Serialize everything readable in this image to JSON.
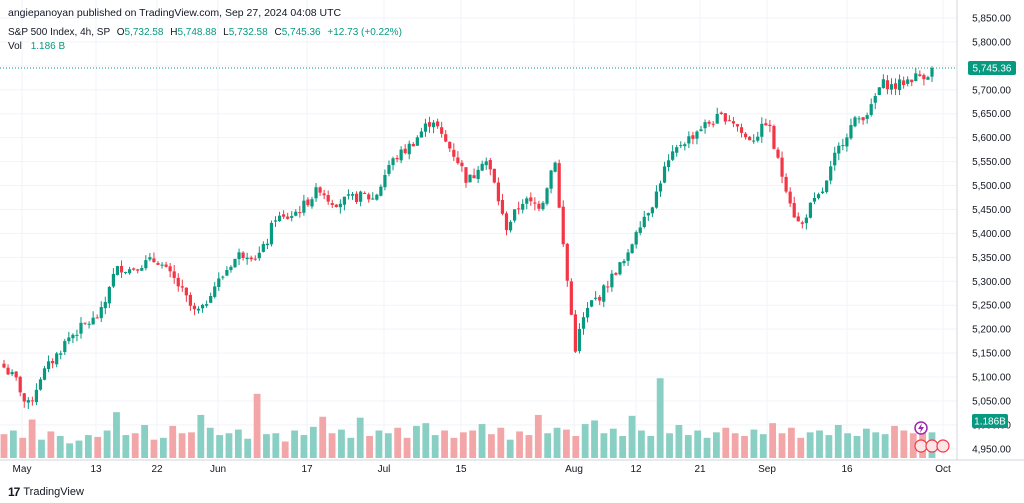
{
  "header": {
    "published": "angiepanoyan published on TradingView.com, Sep 27, 2024 04:08 UTC"
  },
  "legend": {
    "symbol": "S&P 500 Index, 4h, SP",
    "o_label": "O",
    "o_value": "5,732.58",
    "h_label": "H",
    "h_value": "5,748.88",
    "l_label": "L",
    "l_value": "5,732.58",
    "c_label": "C",
    "c_value": "5,745.36",
    "change": "+12.73 (+0.22%)",
    "vol_label": "Vol",
    "vol_value": "1.186 B"
  },
  "footer": {
    "brand": "TradingView"
  },
  "colors": {
    "up": "#089981",
    "down": "#f23645",
    "vol_up": "#89cfc4",
    "vol_down": "#f3a6a8",
    "axis_text": "#131722",
    "price_tag": "#089981",
    "grid": "#f0f3fa"
  },
  "chart_data": {
    "type": "candlestick",
    "title": "S&P 500 Index, 4h, SP",
    "x_tick_labels": [
      "May",
      "13",
      "22",
      "Jun",
      "17",
      "Jul",
      "15",
      "Aug",
      "12",
      "21",
      "Sep",
      "16",
      "Oct"
    ],
    "y_tick_labels": [
      "5,850.00",
      "5,800.00",
      "5,750.00",
      "5,700.00",
      "5,650.00",
      "5,600.00",
      "5,550.00",
      "5,500.00",
      "5,450.00",
      "5,400.00",
      "5,350.00",
      "5,300.00",
      "5,250.00",
      "5,200.00",
      "5,150.00",
      "5,100.00",
      "5,050.00",
      "5,000.00",
      "4,950.00"
    ],
    "y_ticks": [
      5850,
      5800,
      5750,
      5700,
      5650,
      5600,
      5550,
      5500,
      5450,
      5400,
      5350,
      5300,
      5250,
      5200,
      5150,
      5100,
      5050,
      5000,
      4950
    ],
    "ylim": [
      4935,
      5875
    ],
    "last_price": 5745.36,
    "last_price_label": "5,745.36",
    "last_volume_label": "1.186B",
    "close_path": [
      [
        0,
        5120
      ],
      [
        6,
        5090
      ],
      [
        10,
        5035
      ],
      [
        13,
        5060
      ],
      [
        16,
        5100
      ],
      [
        20,
        5125
      ],
      [
        24,
        5150
      ],
      [
        28,
        5180
      ],
      [
        32,
        5195
      ],
      [
        36,
        5210
      ],
      [
        40,
        5220
      ],
      [
        44,
        5240
      ],
      [
        47,
        5300
      ],
      [
        51,
        5330
      ],
      [
        56,
        5325
      ],
      [
        60,
        5335
      ],
      [
        64,
        5340
      ],
      [
        68,
        5345
      ],
      [
        72,
        5320
      ],
      [
        76,
        5300
      ],
      [
        80,
        5270
      ],
      [
        84,
        5235
      ],
      [
        88,
        5240
      ],
      [
        92,
        5285
      ],
      [
        96,
        5305
      ],
      [
        100,
        5335
      ],
      [
        104,
        5355
      ],
      [
        108,
        5360
      ],
      [
        112,
        5350
      ],
      [
        116,
        5375
      ],
      [
        120,
        5435
      ],
      [
        124,
        5430
      ],
      [
        128,
        5440
      ],
      [
        132,
        5455
      ],
      [
        136,
        5475
      ],
      [
        140,
        5495
      ],
      [
        144,
        5470
      ],
      [
        148,
        5465
      ],
      [
        152,
        5470
      ],
      [
        156,
        5475
      ],
      [
        160,
        5480
      ],
      [
        163,
        5470
      ],
      [
        166,
        5490
      ],
      [
        170,
        5540
      ],
      [
        174,
        5560
      ],
      [
        178,
        5575
      ],
      [
        182,
        5595
      ],
      [
        186,
        5620
      ],
      [
        190,
        5640
      ],
      [
        194,
        5600
      ],
      [
        198,
        5575
      ],
      [
        202,
        5545
      ],
      [
        205,
        5510
      ],
      [
        208,
        5520
      ],
      [
        211,
        5555
      ],
      [
        214,
        5550
      ],
      [
        218,
        5490
      ],
      [
        222,
        5410
      ],
      [
        226,
        5440
      ],
      [
        230,
        5470
      ],
      [
        234,
        5460
      ],
      [
        238,
        5460
      ],
      [
        241,
        5510
      ],
      [
        244,
        5560
      ],
      [
        246,
        5445
      ],
      [
        249,
        5320
      ],
      [
        253,
        5160
      ],
      [
        256,
        5215
      ],
      [
        260,
        5255
      ],
      [
        264,
        5270
      ],
      [
        268,
        5300
      ],
      [
        272,
        5330
      ],
      [
        276,
        5345
      ],
      [
        280,
        5410
      ],
      [
        284,
        5440
      ],
      [
        288,
        5470
      ],
      [
        292,
        5530
      ],
      [
        296,
        5560
      ],
      [
        300,
        5590
      ],
      [
        304,
        5600
      ],
      [
        308,
        5620
      ],
      [
        312,
        5630
      ],
      [
        316,
        5640
      ],
      [
        320,
        5645
      ],
      [
        324,
        5630
      ],
      [
        328,
        5600
      ],
      [
        332,
        5600
      ],
      [
        336,
        5620
      ],
      [
        338,
        5640
      ],
      [
        341,
        5580
      ],
      [
        344,
        5530
      ],
      [
        347,
        5490
      ],
      [
        350,
        5440
      ],
      [
        353,
        5410
      ],
      [
        356,
        5450
      ],
      [
        360,
        5470
      ],
      [
        364,
        5500
      ],
      [
        368,
        5560
      ],
      [
        372,
        5600
      ],
      [
        376,
        5630
      ],
      [
        380,
        5645
      ],
      [
        384,
        5660
      ],
      [
        387,
        5700
      ],
      [
        390,
        5715
      ],
      [
        394,
        5705
      ],
      [
        398,
        5715
      ],
      [
        402,
        5725
      ],
      [
        406,
        5730
      ],
      [
        410,
        5735
      ],
      [
        411,
        5745.36
      ]
    ],
    "vol_levels": [
      0.26,
      0.3,
      0.22,
      0.42,
      0.2,
      0.29,
      0.24,
      0.16,
      0.19,
      0.25,
      0.23,
      0.3,
      0.5,
      0.25,
      0.27,
      0.36,
      0.2,
      0.22,
      0.35,
      0.27,
      0.28,
      0.47,
      0.33,
      0.25,
      0.27,
      0.31,
      0.21,
      0.7,
      0.26,
      0.27,
      0.18,
      0.3,
      0.25,
      0.34,
      0.45,
      0.27,
      0.31,
      0.22,
      0.44,
      0.24,
      0.3,
      0.27,
      0.33,
      0.22,
      0.35,
      0.38,
      0.25,
      0.3,
      0.22,
      0.28,
      0.3,
      0.37,
      0.26,
      0.33,
      0.2,
      0.29,
      0.25,
      0.47,
      0.27,
      0.33,
      0.31,
      0.24,
      0.37,
      0.41,
      0.27,
      0.32,
      0.24,
      0.46,
      0.3,
      0.24,
      0.87,
      0.27,
      0.36,
      0.25,
      0.3,
      0.22,
      0.28,
      0.33,
      0.27,
      0.24,
      0.31,
      0.26,
      0.38,
      0.27,
      0.33,
      0.22,
      0.28,
      0.3,
      0.25,
      0.36,
      0.27,
      0.24,
      0.32,
      0.28,
      0.26,
      0.35,
      0.3,
      0.27,
      0.33,
      0.28
    ],
    "vol_ylim": [
      0,
      1.2
    ]
  }
}
